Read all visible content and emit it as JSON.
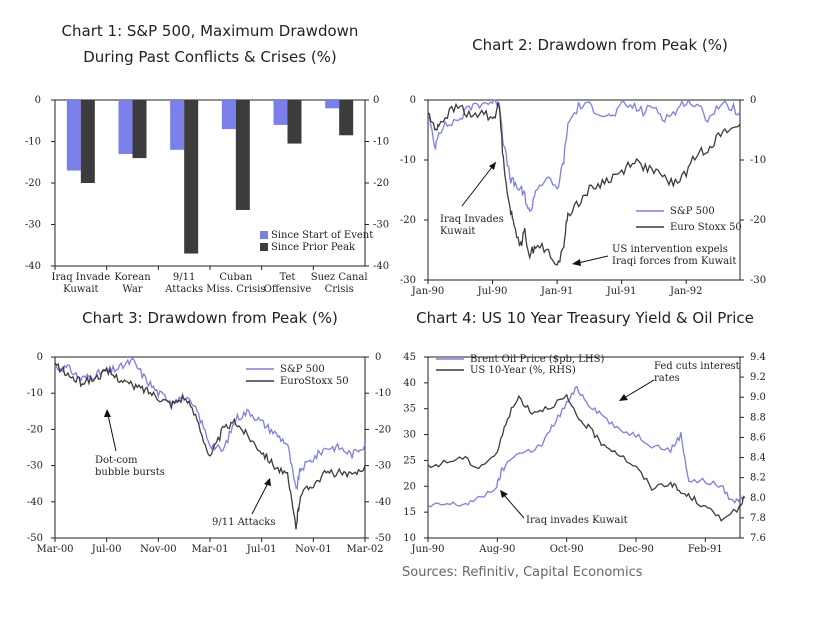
{
  "page": {
    "source": "Sources: Refinitiv, Capital Economics"
  },
  "colors": {
    "blue": "#7b7fea",
    "dark": "#3c3c3c"
  },
  "chart_data": [
    {
      "type": "bar",
      "title_line1": "Chart 1: S&P 500, Maximum Drawdown",
      "title_line2": "During Past Conflicts & Crises (%)",
      "categories": [
        [
          "Iraq Invade",
          "Kuwait"
        ],
        [
          "Korean",
          "War"
        ],
        [
          "9/11",
          "Attacks"
        ],
        [
          "Cuban",
          "Miss. Crisis"
        ],
        [
          "Tet",
          "Offensive"
        ],
        [
          "Suez Canal",
          "Crisis"
        ]
      ],
      "series": [
        {
          "name": "Since Start of Event",
          "values": [
            -17,
            -13,
            -12,
            -7,
            -6,
            -2
          ]
        },
        {
          "name": "Since Prior Peak",
          "values": [
            -20,
            -14,
            -37,
            -26.5,
            -10.5,
            -8.5
          ]
        }
      ],
      "ylim": [
        -40,
        0
      ],
      "yticks": [
        "0",
        "-10",
        "-20",
        "-30",
        "-40"
      ],
      "grid": false,
      "legend": "bottom-right"
    },
    {
      "type": "line",
      "title": "Chart 2: Drawdown from Peak (%)",
      "xlim": [
        "1990-01",
        "1992-06"
      ],
      "xticks": [
        "Jan-90",
        "Jul-90",
        "Jan-91",
        "Jul-91",
        "Jan-92"
      ],
      "ylim": [
        -30,
        0
      ],
      "yticks": [
        "0",
        "-10",
        "-20",
        "-30"
      ],
      "series": [
        {
          "name": "S&P 500",
          "points": [
            [
              "1990-01",
              -2
            ],
            [
              "1990-01-20",
              -8
            ],
            [
              "1990-02",
              -5
            ],
            [
              "1990-03",
              -4
            ],
            [
              "1990-04",
              -3
            ],
            [
              "1990-05",
              -1
            ],
            [
              "1990-06",
              -0.5
            ],
            [
              "1990-07",
              -0.3
            ],
            [
              "1990-07-20",
              0
            ],
            [
              "1990-08",
              -7
            ],
            [
              "1990-08-20",
              -13
            ],
            [
              "1990-09",
              -14
            ],
            [
              "1990-09-20",
              -15
            ],
            [
              "1990-10",
              -16
            ],
            [
              "1990-10-15",
              -19
            ],
            [
              "1990-11",
              -15
            ],
            [
              "1990-12",
              -13
            ],
            [
              "1991-01",
              -15
            ],
            [
              "1991-01-20",
              -10
            ],
            [
              "1991-02",
              -4
            ],
            [
              "1991-03",
              -1
            ],
            [
              "1991-04",
              -1
            ],
            [
              "1991-05",
              -2
            ],
            [
              "1991-06",
              -3
            ],
            [
              "1991-07",
              -1
            ],
            [
              "1991-08",
              -1
            ],
            [
              "1991-09",
              -2
            ],
            [
              "1991-10",
              -1
            ],
            [
              "1991-11",
              -3
            ],
            [
              "1991-12",
              -2
            ],
            [
              "1992-01",
              0
            ],
            [
              "1992-02",
              -1
            ],
            [
              "1992-03",
              -3
            ],
            [
              "1992-04",
              -1
            ],
            [
              "1992-05",
              -1
            ],
            [
              "1992-06",
              -2
            ]
          ]
        },
        {
          "name": "Euro Stoxx 50",
          "points": [
            [
              "1990-01",
              -2
            ],
            [
              "1990-01-20",
              -5
            ],
            [
              "1990-02",
              -4
            ],
            [
              "1990-03",
              -2
            ],
            [
              "1990-04",
              -1
            ],
            [
              "1990-05",
              -3
            ],
            [
              "1990-06",
              -2
            ],
            [
              "1990-07",
              -3
            ],
            [
              "1990-07-20",
              -1
            ],
            [
              "1990-08",
              -10
            ],
            [
              "1990-08-20",
              -18
            ],
            [
              "1990-09",
              -21
            ],
            [
              "1990-09-20",
              -24
            ],
            [
              "1990-10",
              -22
            ],
            [
              "1990-10-15",
              -26
            ],
            [
              "1990-11",
              -24
            ],
            [
              "1990-12",
              -25
            ],
            [
              "1991-01",
              -28
            ],
            [
              "1991-01-20",
              -24
            ],
            [
              "1991-02",
              -19
            ],
            [
              "1991-03",
              -17
            ],
            [
              "1991-04",
              -15
            ],
            [
              "1991-05",
              -14
            ],
            [
              "1991-06",
              -13
            ],
            [
              "1991-07",
              -12
            ],
            [
              "1991-08",
              -10
            ],
            [
              "1991-09",
              -11
            ],
            [
              "1991-10",
              -12
            ],
            [
              "1991-11",
              -13
            ],
            [
              "1991-12",
              -14
            ],
            [
              "1992-01",
              -12
            ],
            [
              "1992-02",
              -9
            ],
            [
              "1992-03",
              -8
            ],
            [
              "1992-04",
              -6
            ],
            [
              "1992-05",
              -5
            ],
            [
              "1992-06",
              -4
            ]
          ]
        }
      ],
      "annotations": [
        {
          "lines": [
            "Iraq Invades",
            "Kuwait"
          ]
        },
        {
          "lines": [
            "US intervention expels",
            "Iraqi forces from Kuwait"
          ]
        }
      ],
      "legend": "bottom-right"
    },
    {
      "type": "line",
      "title": "Chart 3: Drawdown from Peak (%)",
      "xlim": [
        "2000-03",
        "2002-03"
      ],
      "xticks": [
        "Mar-00",
        "Jul-00",
        "Nov-00",
        "Mar-01",
        "Jul-01",
        "Nov-01",
        "Mar-02"
      ],
      "ylim": [
        -50,
        0
      ],
      "yticks": [
        "0",
        "-10",
        "-20",
        "-30",
        "-40",
        "-50"
      ],
      "series": [
        {
          "name": "S&P 500",
          "points": [
            [
              "2000-03",
              -3
            ],
            [
              "2000-04",
              -3
            ],
            [
              "2000-05",
              -6
            ],
            [
              "2000-06",
              -5
            ],
            [
              "2000-07",
              -4
            ],
            [
              "2000-08",
              -3
            ],
            [
              "2000-09",
              -1
            ],
            [
              "2000-10",
              -6
            ],
            [
              "2000-11",
              -10
            ],
            [
              "2000-12",
              -12
            ],
            [
              "2001-01",
              -11
            ],
            [
              "2001-02",
              -15
            ],
            [
              "2001-03",
              -24
            ],
            [
              "2001-04",
              -26
            ],
            [
              "2001-05",
              -17
            ],
            [
              "2001-06",
              -15
            ],
            [
              "2001-07",
              -18
            ],
            [
              "2001-08",
              -21
            ],
            [
              "2001-09",
              -24
            ],
            [
              "2001-09-21",
              -37
            ],
            [
              "2001-10",
              -31
            ],
            [
              "2001-11",
              -28
            ],
            [
              "2001-12",
              -25
            ],
            [
              "2002-01",
              -25
            ],
            [
              "2002-02",
              -27
            ],
            [
              "2002-03",
              -24
            ]
          ]
        },
        {
          "name": "EuroStoxx 50",
          "points": [
            [
              "2000-03",
              -2
            ],
            [
              "2000-04",
              -5
            ],
            [
              "2000-05",
              -7
            ],
            [
              "2000-06",
              -6
            ],
            [
              "2000-07",
              -4
            ],
            [
              "2000-08",
              -6
            ],
            [
              "2000-09",
              -8
            ],
            [
              "2000-10",
              -9
            ],
            [
              "2000-11",
              -11
            ],
            [
              "2000-12",
              -13
            ],
            [
              "2001-01",
              -11
            ],
            [
              "2001-02",
              -17
            ],
            [
              "2001-03",
              -28
            ],
            [
              "2001-04",
              -20
            ],
            [
              "2001-05",
              -18
            ],
            [
              "2001-06",
              -22
            ],
            [
              "2001-07",
              -26
            ],
            [
              "2001-08",
              -30
            ],
            [
              "2001-09",
              -33
            ],
            [
              "2001-09-21",
              -47
            ],
            [
              "2001-10",
              -38
            ],
            [
              "2001-11",
              -35
            ],
            [
              "2001-12",
              -32
            ],
            [
              "2002-01",
              -32
            ],
            [
              "2002-02",
              -33
            ],
            [
              "2002-03",
              -30
            ]
          ]
        }
      ],
      "annotations": [
        {
          "lines": [
            "Dot-com",
            "bubble bursts"
          ]
        },
        {
          "lines": [
            "9/11 Attacks"
          ]
        }
      ],
      "legend": "top-right"
    },
    {
      "type": "line",
      "title": "Chart 4: US 10 Year Treasury Yield & Oil Price",
      "xlim": [
        "1990-06",
        "1991-03"
      ],
      "xticks": [
        "Jun-90",
        "Aug-90",
        "Oct-90",
        "Dec-90",
        "Feb-91"
      ],
      "ylim_left": [
        10,
        45
      ],
      "yticks_left": [
        "45",
        "40",
        "35",
        "30",
        "25",
        "20",
        "15",
        "10"
      ],
      "ylim_right": [
        7.6,
        9.4
      ],
      "yticks_right": [
        "9.4",
        "9.2",
        "9.0",
        "8.8",
        "8.6",
        "8.4",
        "8.2",
        "8.0",
        "7.8",
        "7.6"
      ],
      "series": [
        {
          "name": "Brent Oil Price ($pb, LHS)",
          "axis": "left",
          "points": [
            [
              "1990-06",
              16
            ],
            [
              "1990-06-15",
              16.5
            ],
            [
              "1990-07",
              16.5
            ],
            [
              "1990-07-15",
              17.5
            ],
            [
              "1990-07-31",
              20
            ],
            [
              "1990-08-05",
              23
            ],
            [
              "1990-08-15",
              26
            ],
            [
              "1990-08-31",
              27
            ],
            [
              "1990-09-10",
              28
            ],
            [
              "1990-09-20",
              32
            ],
            [
              "1990-10-01",
              36
            ],
            [
              "1990-10-10",
              39
            ],
            [
              "1990-10-20",
              36
            ],
            [
              "1990-11-01",
              34
            ],
            [
              "1990-11-15",
              31
            ],
            [
              "1990-12-01",
              30
            ],
            [
              "1990-12-15",
              28
            ],
            [
              "1991-01-01",
              27
            ],
            [
              "1991-01-10",
              30
            ],
            [
              "1991-01-17",
              21
            ],
            [
              "1991-02-01",
              21
            ],
            [
              "1991-02-15",
              20
            ],
            [
              "1991-02-25",
              17
            ],
            [
              "1991-03-05",
              18
            ]
          ]
        },
        {
          "name": "US 10-Year (%, RHS)",
          "axis": "right",
          "points": [
            [
              "1990-06",
              8.3
            ],
            [
              "1990-06-15",
              8.35
            ],
            [
              "1990-07",
              8.4
            ],
            [
              "1990-07-15",
              8.3
            ],
            [
              "1990-08-01",
              8.45
            ],
            [
              "1990-08-10",
              8.8
            ],
            [
              "1990-08-20",
              9.0
            ],
            [
              "1990-09-01",
              8.85
            ],
            [
              "1990-09-15",
              8.9
            ],
            [
              "1990-10-01",
              9.0
            ],
            [
              "1990-10-10",
              8.8
            ],
            [
              "1990-10-20",
              8.7
            ],
            [
              "1990-11-01",
              8.55
            ],
            [
              "1990-11-15",
              8.45
            ],
            [
              "1990-12-01",
              8.3
            ],
            [
              "1990-12-15",
              8.1
            ],
            [
              "1991-01-01",
              8.15
            ],
            [
              "1991-01-10",
              8.05
            ],
            [
              "1991-01-20",
              8.0
            ],
            [
              "1991-02-01",
              7.9
            ],
            [
              "1991-02-15",
              7.8
            ],
            [
              "1991-03-01",
              7.9
            ],
            [
              "1991-03-05",
              8.0
            ]
          ]
        }
      ],
      "annotations": [
        {
          "lines": [
            "Fed cuts interest",
            "rates"
          ]
        },
        {
          "lines": [
            "Iraq invades Kuwait"
          ]
        }
      ],
      "legend": "top-left"
    }
  ]
}
